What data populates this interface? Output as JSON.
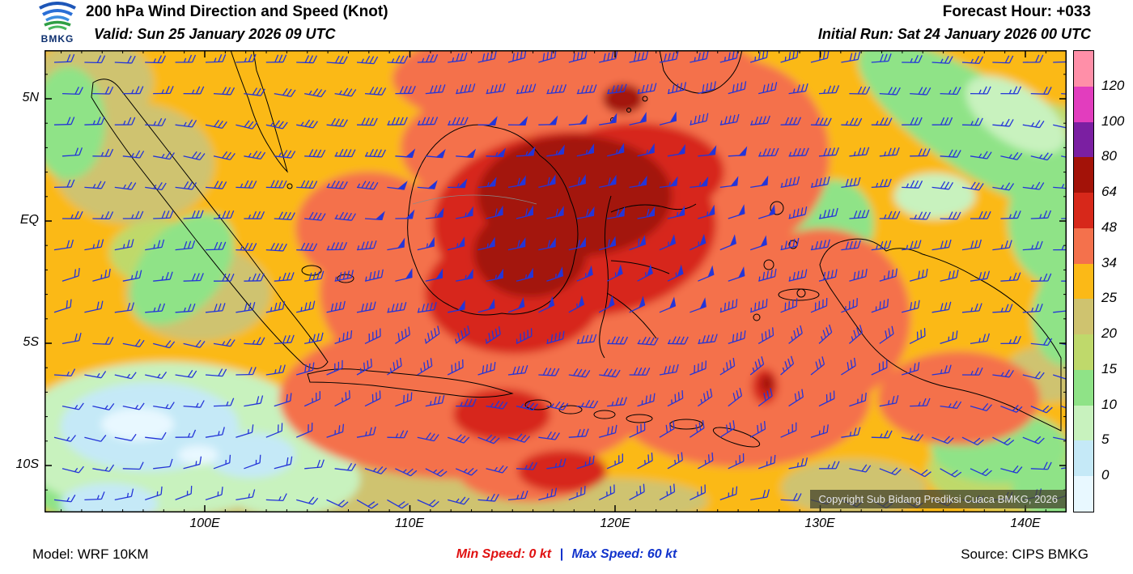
{
  "header": {
    "logo_text": "BMKG",
    "title": "200 hPa Wind Direction and Speed (Knot)",
    "valid_line": "Valid: Sun 25 January 2026 09 UTC",
    "forecast_hour": "Forecast Hour: +033",
    "initial_run": "Initial Run: Sat 24 January 2026 00 UTC"
  },
  "map": {
    "lat_labels": [
      "5N",
      "EQ",
      "5S",
      "10S"
    ],
    "lon_labels": [
      "100E",
      "110E",
      "120E",
      "130E",
      "140E"
    ],
    "copyright": "Copyright Sub Bidang Prediksi Cuaca BMKG, 2026",
    "barb_color": "#2435d8"
  },
  "colorbar": {
    "labels": [
      "120",
      "100",
      "80",
      "64",
      "48",
      "34",
      "25",
      "20",
      "15",
      "10",
      "5",
      "0"
    ],
    "colors": [
      "#ff8fa8",
      "#e23dbe",
      "#7b1fa2",
      "#a31208",
      "#d7281a",
      "#f4714c",
      "#fbb917",
      "#cfc36f",
      "#bfd96b",
      "#8fe387",
      "#c8f2be",
      "#c5e9f7",
      "#e8f8ff"
    ]
  },
  "footer": {
    "model": "Model: WRF 10KM",
    "min_speed_label": "Min Speed:",
    "min_speed_value": "0 kt",
    "separator": "|",
    "max_speed_label": "Max Speed:",
    "max_speed_value": "60 kt",
    "source": "Source: CIPS BMKG"
  }
}
